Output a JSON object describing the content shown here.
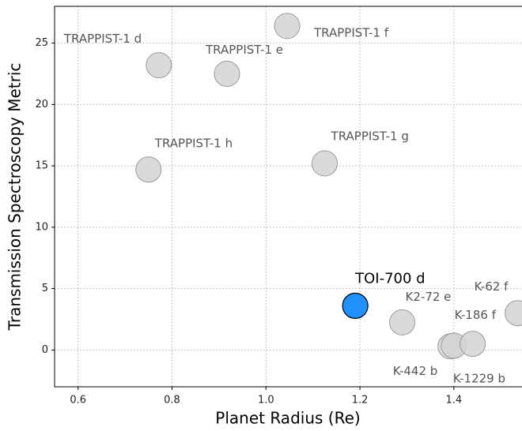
{
  "chart_data": {
    "type": "scatter",
    "x_label": "Planet Radius (Re)",
    "y_label": "Transmission Spectroscopy Metric",
    "labels": [
      "TRAPPIST-1 d",
      "TRAPPIST-1 e",
      "TRAPPIST-1 f",
      "TRAPPIST-1 g",
      "TRAPPIST-1 h",
      "TOI-700 d",
      "K2-72 e",
      "K-442 b",
      "K-1229 b",
      "K-186 f",
      "K-62 f"
    ],
    "x": [
      0.772,
      0.917,
      1.045,
      1.125,
      0.75,
      1.19,
      1.29,
      1.393,
      1.4,
      1.44,
      1.536
    ],
    "y": [
      23.2,
      22.5,
      26.4,
      15.2,
      14.7,
      3.6,
      2.25,
      0.3,
      0.35,
      0.5,
      3.0
    ],
    "colors": [
      "#d3d3d3",
      "#d3d3d3",
      "#d3d3d3",
      "#d3d3d3",
      "#d3d3d3",
      "#1e90ff",
      "#d3d3d3",
      "#d3d3d3",
      "#d3d3d3",
      "#d3d3d3",
      "#d3d3d3"
    ],
    "xlim": [
      0.55,
      1.545
    ],
    "ylim": [
      -3,
      28
    ],
    "xticks": [
      0.6,
      0.8,
      {
        "value": 1,
        "label": "1.0"
      },
      1.2,
      1.4
    ],
    "yticks": [
      0,
      5,
      10,
      15,
      20,
      25
    ],
    "grid": true
  }
}
